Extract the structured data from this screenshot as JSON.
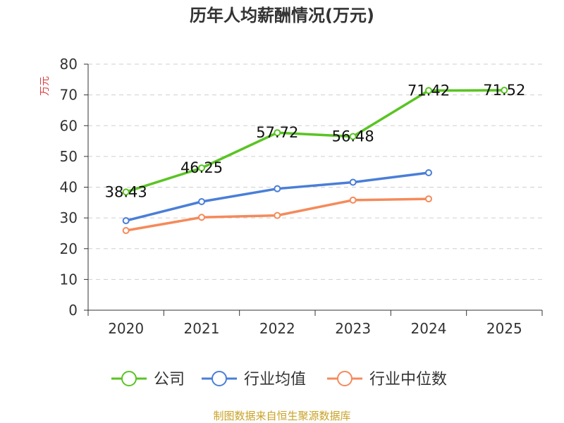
{
  "chart_data": {
    "type": "line",
    "title": "历年人均薪酬情况(万元)",
    "ylabel": "万元",
    "xlabel": "",
    "categories": [
      "2020",
      "2021",
      "2022",
      "2023",
      "2024",
      "2025"
    ],
    "ylim": [
      0,
      80
    ],
    "yticks": [
      0,
      10,
      20,
      30,
      40,
      50,
      60,
      70,
      80
    ],
    "grid": true,
    "legend_position": "bottom",
    "series": [
      {
        "name": "公司",
        "color": "#5ac423",
        "values": [
          38.43,
          46.25,
          57.72,
          56.48,
          71.42,
          71.52
        ],
        "labels": [
          "38.43",
          "46.25",
          "57.72",
          "56.48",
          "71.42",
          "71.52"
        ]
      },
      {
        "name": "行业均值",
        "color": "#4a7ed8",
        "values": [
          29.1,
          35.3,
          39.5,
          41.6,
          44.7,
          null
        ]
      },
      {
        "name": "行业中位数",
        "color": "#f58a5a",
        "values": [
          25.9,
          30.2,
          30.8,
          35.8,
          36.2,
          null
        ]
      }
    ]
  },
  "footer": {
    "source": "制图数据来自恒生聚源数据库"
  }
}
